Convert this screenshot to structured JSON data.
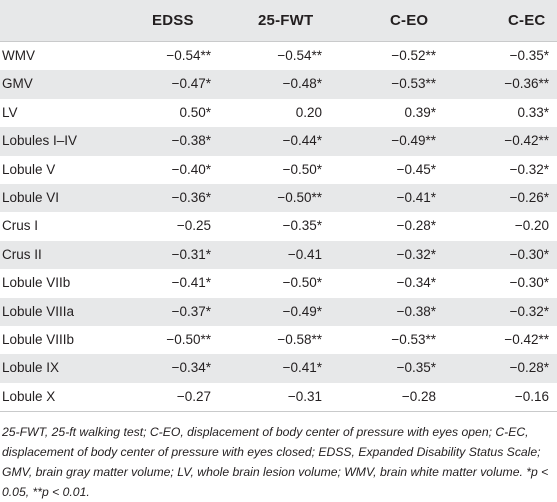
{
  "table": {
    "columns": [
      "",
      "EDSS",
      "25-FWT",
      "C-EO",
      "C-EC"
    ],
    "rows": [
      {
        "label": "WMV",
        "values": [
          "−0.54**",
          "−0.54**",
          "−0.52**",
          "−0.35*"
        ]
      },
      {
        "label": "GMV",
        "values": [
          "−0.47*",
          "−0.48*",
          "−0.53**",
          "−0.36**"
        ]
      },
      {
        "label": "LV",
        "values": [
          "0.50*",
          "0.20",
          "0.39*",
          "0.33*"
        ]
      },
      {
        "label": "Lobules I–IV",
        "values": [
          "−0.38*",
          "−0.44*",
          "−0.49**",
          "−0.42**"
        ]
      },
      {
        "label": "Lobule V",
        "values": [
          "−0.40*",
          "−0.50*",
          "−0.45*",
          "−0.32*"
        ]
      },
      {
        "label": "Lobule VI",
        "values": [
          "−0.36*",
          "−0.50**",
          "−0.41*",
          "−0.26*"
        ]
      },
      {
        "label": "Crus I",
        "values": [
          "−0.25",
          "−0.35*",
          "−0.28*",
          "−0.20"
        ]
      },
      {
        "label": "Crus II",
        "values": [
          "−0.31*",
          "−0.41",
          "−0.32*",
          "−0.30*"
        ]
      },
      {
        "label": "Lobule VIIb",
        "values": [
          "−0.41*",
          "−0.50*",
          "−0.34*",
          "−0.30*"
        ]
      },
      {
        "label": "Lobule VIIIa",
        "values": [
          "−0.37*",
          "−0.49*",
          "−0.38*",
          "−0.32*"
        ]
      },
      {
        "label": "Lobule VIIIb",
        "values": [
          "−0.50**",
          "−0.58**",
          "−0.53**",
          "−0.42**"
        ]
      },
      {
        "label": "Lobule IX",
        "values": [
          "−0.34*",
          "−0.41*",
          "−0.35*",
          "−0.28*"
        ]
      },
      {
        "label": "Lobule X",
        "values": [
          "−0.27",
          "−0.31",
          "−0.28",
          "−0.16"
        ]
      }
    ]
  },
  "footnote": "25-FWT, 25-ft walking test; C-EO, displacement of body center of pressure with eyes open; C-EC, displacement of body center of pressure with eyes closed; EDSS, Expanded Disability Status Scale; GMV, brain gray matter volume; LV, whole brain lesion volume; WMV, brain white matter volume. *p < 0.05, **p < 0.01.",
  "colors": {
    "header_bg": "#e7e8e9",
    "stripe_bg": "#e7e8e9",
    "text": "#231f20",
    "rule": "#c9cacb"
  }
}
